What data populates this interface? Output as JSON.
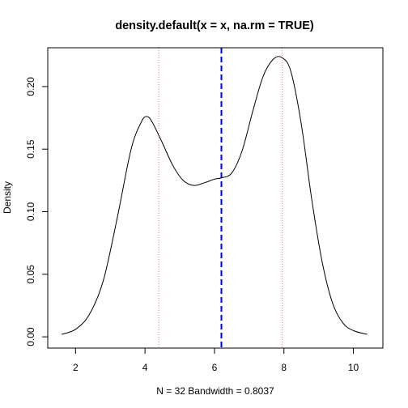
{
  "chart_data": {
    "type": "line",
    "title": "density.default(x = x, na.rm = TRUE)",
    "xlabel": "N = 32   Bandwidth = 0.8037",
    "ylabel": "Density",
    "xlim": [
      1.2,
      10.85
    ],
    "ylim": [
      -0.009,
      0.231
    ],
    "x_ticks": [
      "2",
      "4",
      "6",
      "8",
      "10"
    ],
    "y_ticks": [
      "0.00",
      "0.05",
      "0.10",
      "0.15",
      "0.20"
    ],
    "grid": false,
    "legend": "none",
    "series": [
      {
        "x": [
          1.6,
          2.0,
          2.4,
          2.8,
          3.2,
          3.6,
          3.9,
          4.05,
          4.2,
          4.5,
          4.8,
          5.1,
          5.4,
          5.7,
          6.0,
          6.2,
          6.5,
          6.8,
          7.1,
          7.4,
          7.7,
          7.95,
          8.2,
          8.5,
          8.8,
          9.1,
          9.4,
          9.7,
          10.0,
          10.4
        ],
        "y": [
          0.002,
          0.006,
          0.018,
          0.045,
          0.095,
          0.15,
          0.172,
          0.176,
          0.172,
          0.155,
          0.137,
          0.125,
          0.121,
          0.123,
          0.126,
          0.127,
          0.131,
          0.149,
          0.18,
          0.208,
          0.222,
          0.223,
          0.212,
          0.17,
          0.11,
          0.06,
          0.027,
          0.011,
          0.005,
          0.002
        ],
        "color": "#000000"
      }
    ],
    "vlines": [
      {
        "x": 4.4,
        "color": "#ff6eb4",
        "style": "dotted"
      },
      {
        "x": 6.2,
        "color": "#0000ee",
        "style": "dashed"
      },
      {
        "x": 7.95,
        "color": "#ff6eb4",
        "style": "dotted"
      }
    ]
  }
}
